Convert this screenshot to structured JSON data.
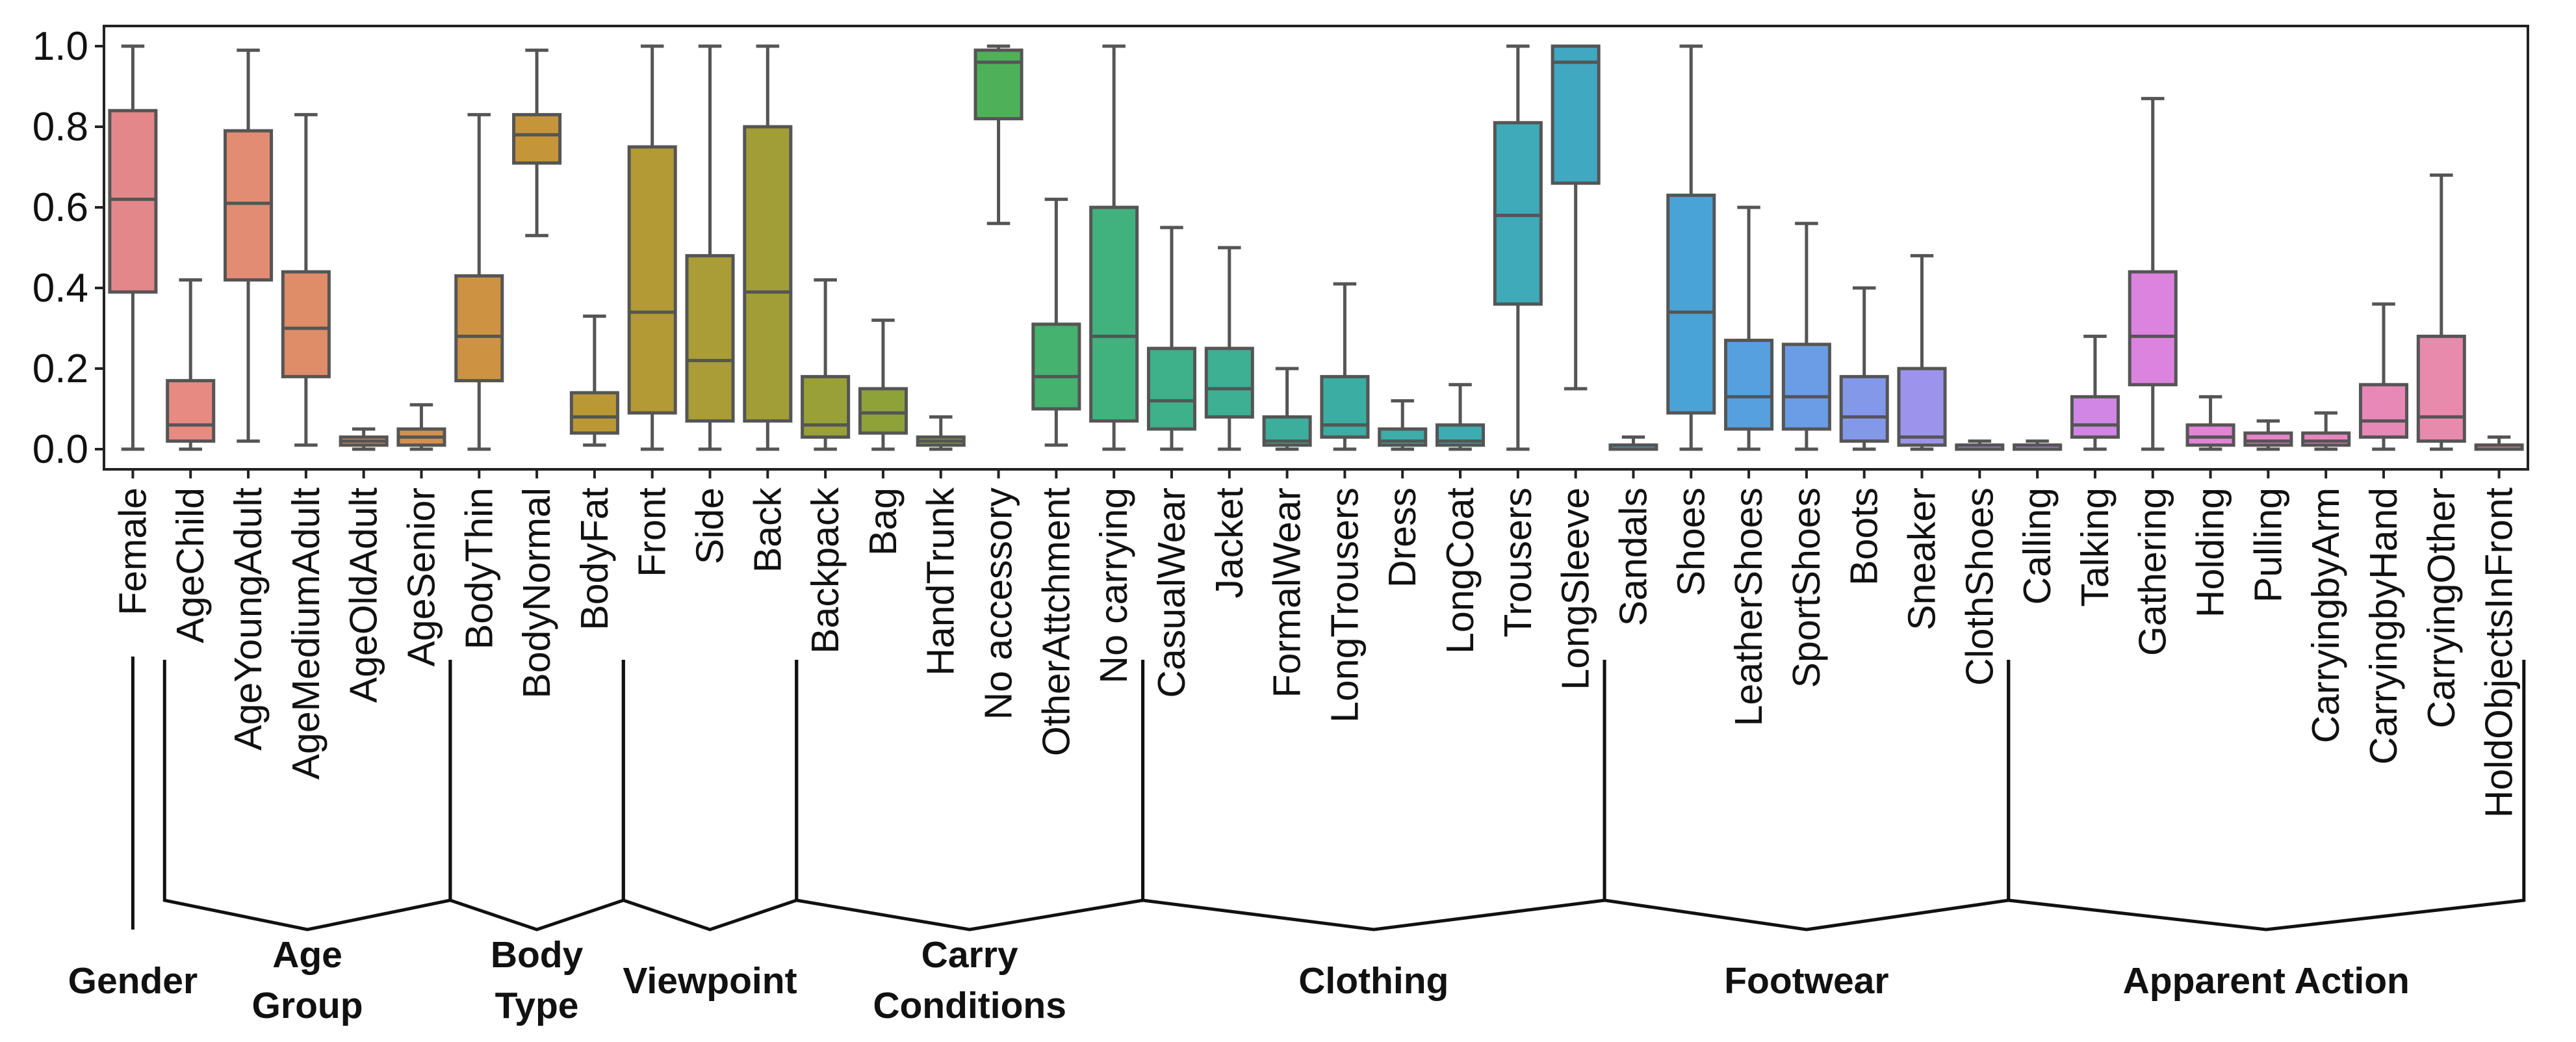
{
  "chart_data": {
    "type": "box",
    "ylim": [
      -0.05,
      1.05
    ],
    "yticks": [
      "0.0",
      "0.2",
      "0.4",
      "0.6",
      "0.8",
      "1.0"
    ],
    "grid": false,
    "legend": false,
    "categories": [
      {
        "name": "Female",
        "color": "#e4878a",
        "stats": {
          "min": 0.0,
          "q1": 0.39,
          "median": 0.62,
          "q3": 0.84,
          "max": 1.0
        }
      },
      {
        "name": "AgeChild",
        "color": "#e68a82",
        "stats": {
          "min": 0.0,
          "q1": 0.02,
          "median": 0.06,
          "q3": 0.17,
          "max": 0.42
        }
      },
      {
        "name": "AgeYoungAdult",
        "color": "#e38c74",
        "stats": {
          "min": 0.02,
          "q1": 0.42,
          "median": 0.61,
          "q3": 0.79,
          "max": 0.99
        }
      },
      {
        "name": "AgeMediumAdult",
        "color": "#de8d68",
        "stats": {
          "min": 0.01,
          "q1": 0.18,
          "median": 0.3,
          "q3": 0.44,
          "max": 0.83
        }
      },
      {
        "name": "AgeOldAdult",
        "color": "#d88f59",
        "stats": {
          "min": 0.0,
          "q1": 0.01,
          "median": 0.02,
          "q3": 0.03,
          "max": 0.05
        }
      },
      {
        "name": "AgeSenior",
        "color": "#d4914c",
        "stats": {
          "min": 0.0,
          "q1": 0.01,
          "median": 0.03,
          "q3": 0.05,
          "max": 0.11
        }
      },
      {
        "name": "BodyThin",
        "color": "#cd9342",
        "stats": {
          "min": 0.0,
          "q1": 0.17,
          "median": 0.28,
          "q3": 0.43,
          "max": 0.83
        }
      },
      {
        "name": "BodyNormal",
        "color": "#c49539",
        "stats": {
          "min": 0.53,
          "q1": 0.71,
          "median": 0.78,
          "q3": 0.83,
          "max": 0.99
        }
      },
      {
        "name": "BodyFat",
        "color": "#bb9836",
        "stats": {
          "min": 0.01,
          "q1": 0.04,
          "median": 0.08,
          "q3": 0.14,
          "max": 0.33
        }
      },
      {
        "name": "Front",
        "color": "#b39a35",
        "stats": {
          "min": 0.0,
          "q1": 0.09,
          "median": 0.34,
          "q3": 0.75,
          "max": 1.0
        }
      },
      {
        "name": "Side",
        "color": "#aa9c36",
        "stats": {
          "min": 0.0,
          "q1": 0.07,
          "median": 0.22,
          "q3": 0.48,
          "max": 1.0
        }
      },
      {
        "name": "Back",
        "color": "#a19e37",
        "stats": {
          "min": 0.0,
          "q1": 0.07,
          "median": 0.39,
          "q3": 0.8,
          "max": 1.0
        }
      },
      {
        "name": "Backpack",
        "color": "#99a038",
        "stats": {
          "min": 0.0,
          "q1": 0.03,
          "median": 0.06,
          "q3": 0.18,
          "max": 0.42
        }
      },
      {
        "name": "Bag",
        "color": "#8fa23a",
        "stats": {
          "min": 0.0,
          "q1": 0.04,
          "median": 0.09,
          "q3": 0.15,
          "max": 0.32
        }
      },
      {
        "name": "HandTrunk",
        "color": "#83a53e",
        "stats": {
          "min": 0.0,
          "q1": 0.01,
          "median": 0.02,
          "q3": 0.03,
          "max": 0.08
        }
      },
      {
        "name": "No accessory",
        "color": "#4eb15a",
        "stats": {
          "min": 0.56,
          "q1": 0.82,
          "median": 0.96,
          "q3": 0.99,
          "max": 1.0
        }
      },
      {
        "name": "OtherAttchment",
        "color": "#45b26f",
        "stats": {
          "min": 0.01,
          "q1": 0.1,
          "median": 0.18,
          "q3": 0.31,
          "max": 0.62
        }
      },
      {
        "name": "No carrying",
        "color": "#41b17e",
        "stats": {
          "min": 0.0,
          "q1": 0.07,
          "median": 0.28,
          "q3": 0.6,
          "max": 1.0
        }
      },
      {
        "name": "CasualWear",
        "color": "#3eb08a",
        "stats": {
          "min": 0.0,
          "q1": 0.05,
          "median": 0.12,
          "q3": 0.25,
          "max": 0.55
        }
      },
      {
        "name": "Jacket",
        "color": "#3daf93",
        "stats": {
          "min": 0.0,
          "q1": 0.08,
          "median": 0.15,
          "q3": 0.25,
          "max": 0.5
        }
      },
      {
        "name": "FormalWear",
        "color": "#3cae9b",
        "stats": {
          "min": 0.0,
          "q1": 0.01,
          "median": 0.02,
          "q3": 0.08,
          "max": 0.2
        }
      },
      {
        "name": "LongTrousers",
        "color": "#3cada2",
        "stats": {
          "min": 0.0,
          "q1": 0.03,
          "median": 0.06,
          "q3": 0.18,
          "max": 0.41
        }
      },
      {
        "name": "Dress",
        "color": "#3dacaa",
        "stats": {
          "min": 0.0,
          "q1": 0.01,
          "median": 0.02,
          "q3": 0.05,
          "max": 0.12
        }
      },
      {
        "name": "LongCoat",
        "color": "#3eabb1",
        "stats": {
          "min": 0.0,
          "q1": 0.01,
          "median": 0.02,
          "q3": 0.06,
          "max": 0.16
        }
      },
      {
        "name": "Trousers",
        "color": "#3faab8",
        "stats": {
          "min": 0.0,
          "q1": 0.36,
          "median": 0.58,
          "q3": 0.81,
          "max": 1.0
        }
      },
      {
        "name": "LongSleeve",
        "color": "#41a8c1",
        "stats": {
          "min": 0.15,
          "q1": 0.66,
          "median": 0.96,
          "q3": 1.0,
          "max": 1.0
        }
      },
      {
        "name": "Sandals",
        "color": "#44a6cb",
        "stats": {
          "min": 0.0,
          "q1": 0.0,
          "median": 0.01,
          "q3": 0.01,
          "max": 0.03
        }
      },
      {
        "name": "Shoes",
        "color": "#4aa3d6",
        "stats": {
          "min": 0.0,
          "q1": 0.09,
          "median": 0.34,
          "q3": 0.63,
          "max": 1.0
        }
      },
      {
        "name": "LeatherShoes",
        "color": "#56a0e0",
        "stats": {
          "min": 0.0,
          "q1": 0.05,
          "median": 0.13,
          "q3": 0.27,
          "max": 0.6
        }
      },
      {
        "name": "SportShoes",
        "color": "#6a9de6",
        "stats": {
          "min": 0.0,
          "q1": 0.05,
          "median": 0.13,
          "q3": 0.26,
          "max": 0.56
        }
      },
      {
        "name": "Boots",
        "color": "#8498ea",
        "stats": {
          "min": 0.0,
          "q1": 0.02,
          "median": 0.08,
          "q3": 0.18,
          "max": 0.4
        }
      },
      {
        "name": "Sneaker",
        "color": "#9c94ec",
        "stats": {
          "min": 0.0,
          "q1": 0.01,
          "median": 0.03,
          "q3": 0.2,
          "max": 0.48
        }
      },
      {
        "name": "ClothShoes",
        "color": "#b08fec",
        "stats": {
          "min": 0.0,
          "q1": 0.0,
          "median": 0.01,
          "q3": 0.01,
          "max": 0.02
        }
      },
      {
        "name": "Calling",
        "color": "#c28ae9",
        "stats": {
          "min": 0.0,
          "q1": 0.0,
          "median": 0.01,
          "q3": 0.01,
          "max": 0.02
        }
      },
      {
        "name": "Talking",
        "color": "#d186e5",
        "stats": {
          "min": 0.0,
          "q1": 0.03,
          "median": 0.06,
          "q3": 0.13,
          "max": 0.28
        }
      },
      {
        "name": "Gathering",
        "color": "#dc83df",
        "stats": {
          "min": 0.0,
          "q1": 0.16,
          "median": 0.28,
          "q3": 0.44,
          "max": 0.87
        }
      },
      {
        "name": "Holding",
        "color": "#e283d6",
        "stats": {
          "min": 0.0,
          "q1": 0.01,
          "median": 0.03,
          "q3": 0.06,
          "max": 0.13
        }
      },
      {
        "name": "Pulling",
        "color": "#e684cc",
        "stats": {
          "min": 0.0,
          "q1": 0.01,
          "median": 0.02,
          "q3": 0.04,
          "max": 0.07
        }
      },
      {
        "name": "CarryingbyArm",
        "color": "#e886c2",
        "stats": {
          "min": 0.0,
          "q1": 0.01,
          "median": 0.02,
          "q3": 0.04,
          "max": 0.09
        }
      },
      {
        "name": "CarryingbyHand",
        "color": "#e888b7",
        "stats": {
          "min": 0.0,
          "q1": 0.03,
          "median": 0.07,
          "q3": 0.16,
          "max": 0.36
        }
      },
      {
        "name": "CarryingOther",
        "color": "#e78aac",
        "stats": {
          "min": 0.0,
          "q1": 0.02,
          "median": 0.08,
          "q3": 0.28,
          "max": 0.68
        }
      },
      {
        "name": "HoldObjectsInFront",
        "color": "#e58ca0",
        "stats": {
          "min": 0.0,
          "q1": 0.0,
          "median": 0.01,
          "q3": 0.01,
          "max": 0.03
        }
      }
    ],
    "groups": [
      {
        "name": "Gender",
        "lines": [
          "Gender"
        ],
        "start": 0,
        "end": 0
      },
      {
        "name": "Age Group",
        "lines": [
          "Age",
          "Group"
        ],
        "start": 1,
        "end": 5
      },
      {
        "name": "Body Type",
        "lines": [
          "Body",
          "Type"
        ],
        "start": 6,
        "end": 8
      },
      {
        "name": "Viewpoint",
        "lines": [
          "Viewpoint"
        ],
        "start": 9,
        "end": 11
      },
      {
        "name": "Carry Conditions",
        "lines": [
          "Carry",
          "Conditions"
        ],
        "start": 12,
        "end": 17
      },
      {
        "name": "Clothing",
        "lines": [
          "Clothing"
        ],
        "start": 18,
        "end": 25
      },
      {
        "name": "Footwear",
        "lines": [
          "Footwear"
        ],
        "start": 26,
        "end": 32
      },
      {
        "name": "Apparent Action",
        "lines": [
          "Apparent Action"
        ],
        "start": 33,
        "end": 41
      }
    ]
  }
}
